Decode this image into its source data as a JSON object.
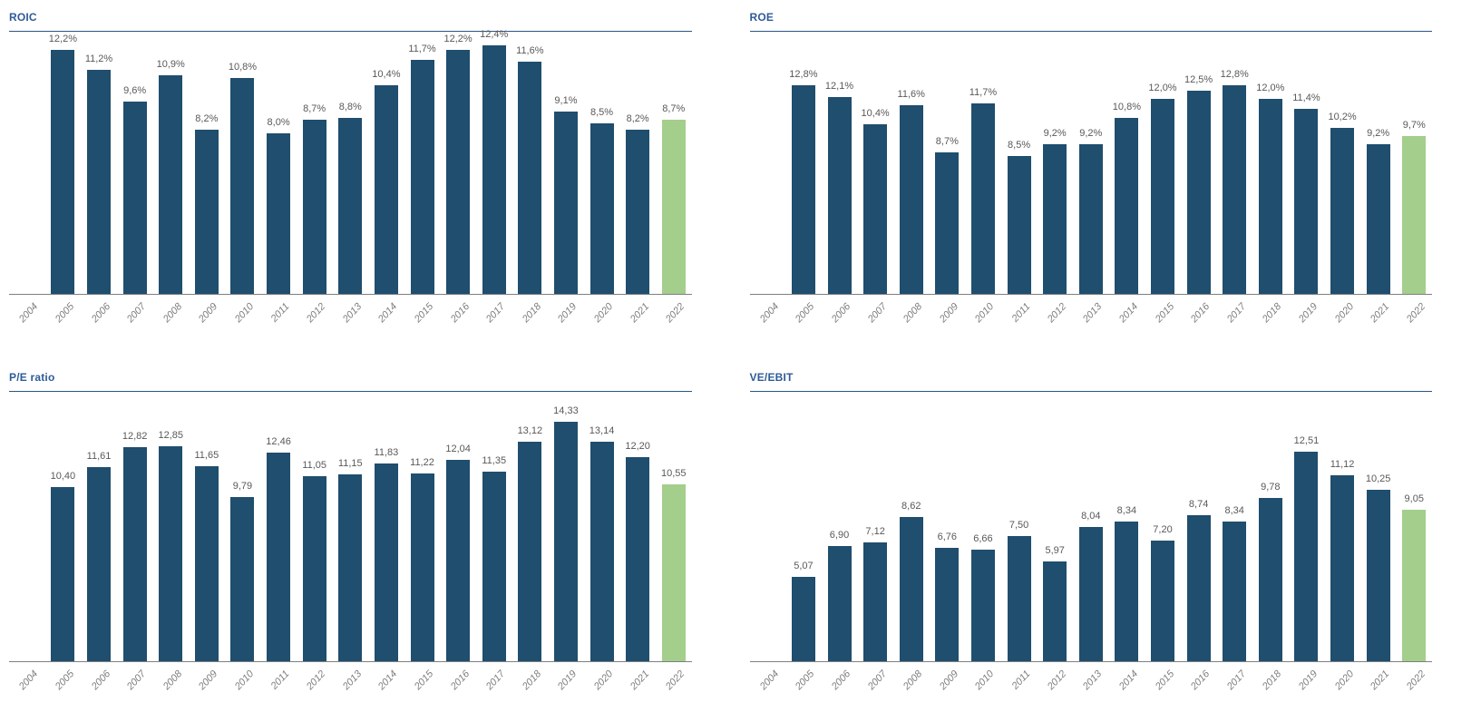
{
  "colors": {
    "bar": "#1f4e6e",
    "highlight": "#a3ce8c",
    "title": "#2e5b97",
    "rule": "#2a5585",
    "axis_line": "#7f7f7f",
    "value_label": "#595959",
    "tick_label": "#7f7f7f"
  },
  "chart_data": [
    {
      "id": "roic",
      "type": "bar",
      "title": "ROIC",
      "xlabel": "",
      "ylabel": "",
      "ylim": [
        0,
        13
      ],
      "grid": false,
      "legend": false,
      "highlight_index": 18,
      "categories": [
        "2004",
        "2005",
        "2006",
        "2007",
        "2008",
        "2009",
        "2010",
        "2011",
        "2012",
        "2013",
        "2014",
        "2015",
        "2016",
        "2017",
        "2018",
        "2019",
        "2020",
        "2021",
        "2022"
      ],
      "values": [
        null,
        12.2,
        11.2,
        9.6,
        10.9,
        8.2,
        10.8,
        8.0,
        8.7,
        8.8,
        10.4,
        11.7,
        12.2,
        12.4,
        11.6,
        9.1,
        8.5,
        8.2,
        8.7
      ],
      "labels": [
        "",
        "12,2%",
        "11,2%",
        "9,6%",
        "10,9%",
        "8,2%",
        "10,8%",
        "8,0%",
        "8,7%",
        "8,8%",
        "10,4%",
        "11,7%",
        "12,2%",
        "12,4%",
        "11,6%",
        "9,1%",
        "8,5%",
        "8,2%",
        "8,7%"
      ]
    },
    {
      "id": "roe",
      "type": "bar",
      "title": "ROE",
      "xlabel": "",
      "ylabel": "",
      "ylim": [
        0,
        16
      ],
      "grid": false,
      "legend": false,
      "highlight_index": 18,
      "categories": [
        "2004",
        "2005",
        "2006",
        "2007",
        "2008",
        "2009",
        "2010",
        "2011",
        "2012",
        "2013",
        "2014",
        "2015",
        "2016",
        "2017",
        "2018",
        "2019",
        "2020",
        "2021",
        "2022"
      ],
      "values": [
        null,
        12.8,
        12.1,
        10.4,
        11.6,
        8.7,
        11.7,
        8.5,
        9.2,
        9.2,
        10.8,
        12.0,
        12.5,
        12.8,
        12.0,
        11.4,
        10.2,
        9.2,
        9.7
      ],
      "labels": [
        "",
        "12,8%",
        "12,1%",
        "10,4%",
        "11,6%",
        "8,7%",
        "11,7%",
        "8,5%",
        "9,2%",
        "9,2%",
        "10,8%",
        "12,0%",
        "12,5%",
        "12,8%",
        "12,0%",
        "11,4%",
        "10,2%",
        "9,2%",
        "9,7%"
      ]
    },
    {
      "id": "pe-ratio",
      "type": "bar",
      "title": "P/E ratio",
      "xlabel": "",
      "ylabel": "",
      "ylim": [
        0,
        16
      ],
      "grid": false,
      "legend": false,
      "highlight_index": 18,
      "categories": [
        "2004",
        "2005",
        "2006",
        "2007",
        "2008",
        "2009",
        "2010",
        "2011",
        "2012",
        "2013",
        "2014",
        "2015",
        "2016",
        "2017",
        "2018",
        "2019",
        "2020",
        "2021",
        "2022"
      ],
      "values": [
        null,
        10.4,
        11.61,
        12.82,
        12.85,
        11.65,
        9.79,
        12.46,
        11.05,
        11.15,
        11.83,
        11.22,
        12.04,
        11.35,
        13.12,
        14.33,
        13.14,
        12.2,
        10.55
      ],
      "labels": [
        "",
        "10,40",
        "11,61",
        "12,82",
        "12,85",
        "11,65",
        "9,79",
        "12,46",
        "11,05",
        "11,15",
        "11,83",
        "11,22",
        "12,04",
        "11,35",
        "13,12",
        "14,33",
        "13,14",
        "12,20",
        "10,55"
      ]
    },
    {
      "id": "ve-ebit",
      "type": "bar",
      "title": "VE/EBIT",
      "xlabel": "",
      "ylabel": "",
      "ylim": [
        0,
        16
      ],
      "grid": false,
      "legend": false,
      "highlight_index": 18,
      "categories": [
        "2004",
        "2005",
        "2006",
        "2007",
        "2008",
        "2009",
        "2010",
        "2011",
        "2012",
        "2013",
        "2014",
        "2015",
        "2016",
        "2017",
        "2018",
        "2019",
        "2020",
        "2021",
        "2022"
      ],
      "values": [
        null,
        5.07,
        6.9,
        7.12,
        8.62,
        6.76,
        6.66,
        7.5,
        5.97,
        8.04,
        8.34,
        7.2,
        8.74,
        8.34,
        9.78,
        12.51,
        11.12,
        10.25,
        9.05
      ],
      "labels": [
        "",
        "5,07",
        "6,90",
        "7,12",
        "8,62",
        "6,76",
        "6,66",
        "7,50",
        "5,97",
        "8,04",
        "8,34",
        "7,20",
        "8,74",
        "8,34",
        "9,78",
        "12,51",
        "11,12",
        "10,25",
        "9,05"
      ]
    }
  ]
}
